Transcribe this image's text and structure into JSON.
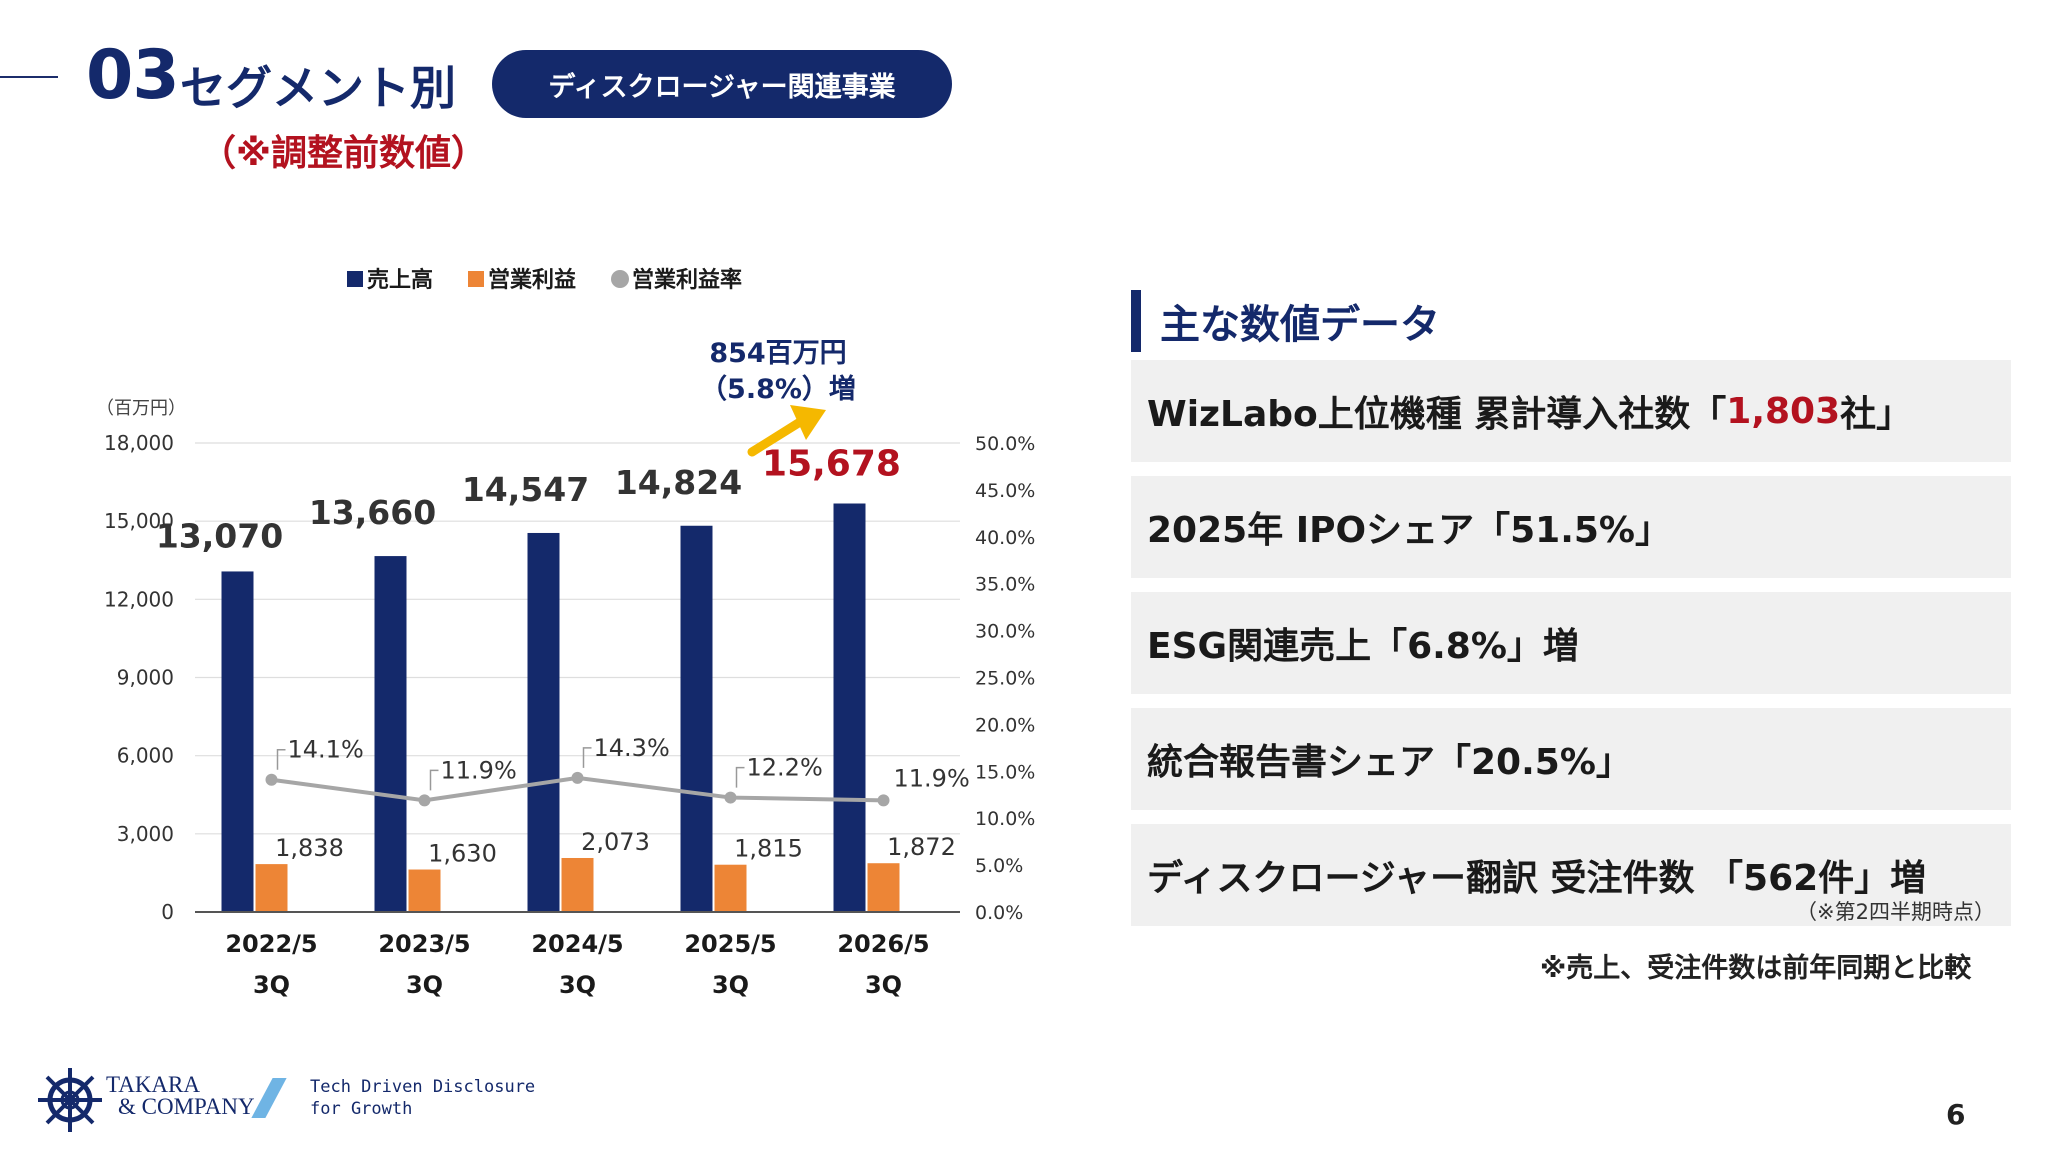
{
  "header": {
    "section_number": "03",
    "section_title": "セグメント別",
    "subtitle": "（※調整前数値）",
    "segment_pill": "ディスクロージャー関連事業"
  },
  "chart_data": {
    "type": "bar",
    "categories_line1": [
      "2022/5",
      "2023/5",
      "2024/5",
      "2025/5",
      "2026/5"
    ],
    "categories_line2": [
      "3Q",
      "3Q",
      "3Q",
      "3Q",
      "3Q"
    ],
    "y_unit_label": "（百万円）",
    "ylim": [
      0,
      18000
    ],
    "y_ticks": [
      "0",
      "3,000",
      "6,000",
      "9,000",
      "12,000",
      "15,000",
      "18,000"
    ],
    "y2lim": [
      0,
      50
    ],
    "y2_ticks": [
      "0.0%",
      "5.0%",
      "10.0%",
      "15.0%",
      "20.0%",
      "25.0%",
      "30.0%",
      "35.0%",
      "40.0%",
      "45.0%",
      "50.0%"
    ],
    "grid": true,
    "legend_position": "top",
    "series": [
      {
        "name": "売上高",
        "kind": "bar",
        "axis": "left",
        "color": "#14296b",
        "values": [
          13070,
          13660,
          14547,
          14824,
          15678
        ],
        "labels": [
          "13,070",
          "13,660",
          "14,547",
          "14,824",
          "15,678"
        ]
      },
      {
        "name": "営業利益",
        "kind": "bar",
        "axis": "left",
        "color": "#ed8536",
        "values": [
          1838,
          1630,
          2073,
          1815,
          1872
        ],
        "labels": [
          "1,838",
          "1,630",
          "2,073",
          "1,815",
          "1,872"
        ]
      },
      {
        "name": "営業利益率",
        "kind": "line",
        "axis": "right",
        "color": "#a6a6a6",
        "values": [
          14.1,
          11.9,
          14.3,
          12.2,
          11.9
        ],
        "labels": [
          "14.1%",
          "11.9%",
          "14.3%",
          "12.2%",
          "11.9%"
        ]
      }
    ],
    "highlight_color": "#b3121f",
    "annotation": {
      "line1": "854百万円",
      "line2": "（5.8%）増",
      "arrow_color": "#f5b800"
    }
  },
  "key_figures": {
    "title": "主な数値データ",
    "items": [
      {
        "prefix": "WizLabo上位機種 累計導入社数「",
        "highlight": "1,803",
        "suffix": "社」",
        "note": ""
      },
      {
        "prefix": "2025年 IPOシェア「51.5%」",
        "highlight": "",
        "suffix": "",
        "note": ""
      },
      {
        "prefix": "ESG関連売上「6.8%」増",
        "highlight": "",
        "suffix": "",
        "note": ""
      },
      {
        "prefix": "統合報告書シェア「20.5%」",
        "highlight": "",
        "suffix": "",
        "note": ""
      },
      {
        "prefix": "ディスクロージャー翻訳 受注件数 「562件」増",
        "highlight": "",
        "suffix": "",
        "note": "（※第2四半期時点）"
      }
    ],
    "footnote": "※売上、受注件数は前年同期と比較"
  },
  "footer": {
    "logo_line1": "TAKARA",
    "logo_line2": "& COMPANY",
    "tagline_line1": "Tech Driven Disclosure",
    "tagline_line2": "for Growth",
    "page_number": "6"
  }
}
